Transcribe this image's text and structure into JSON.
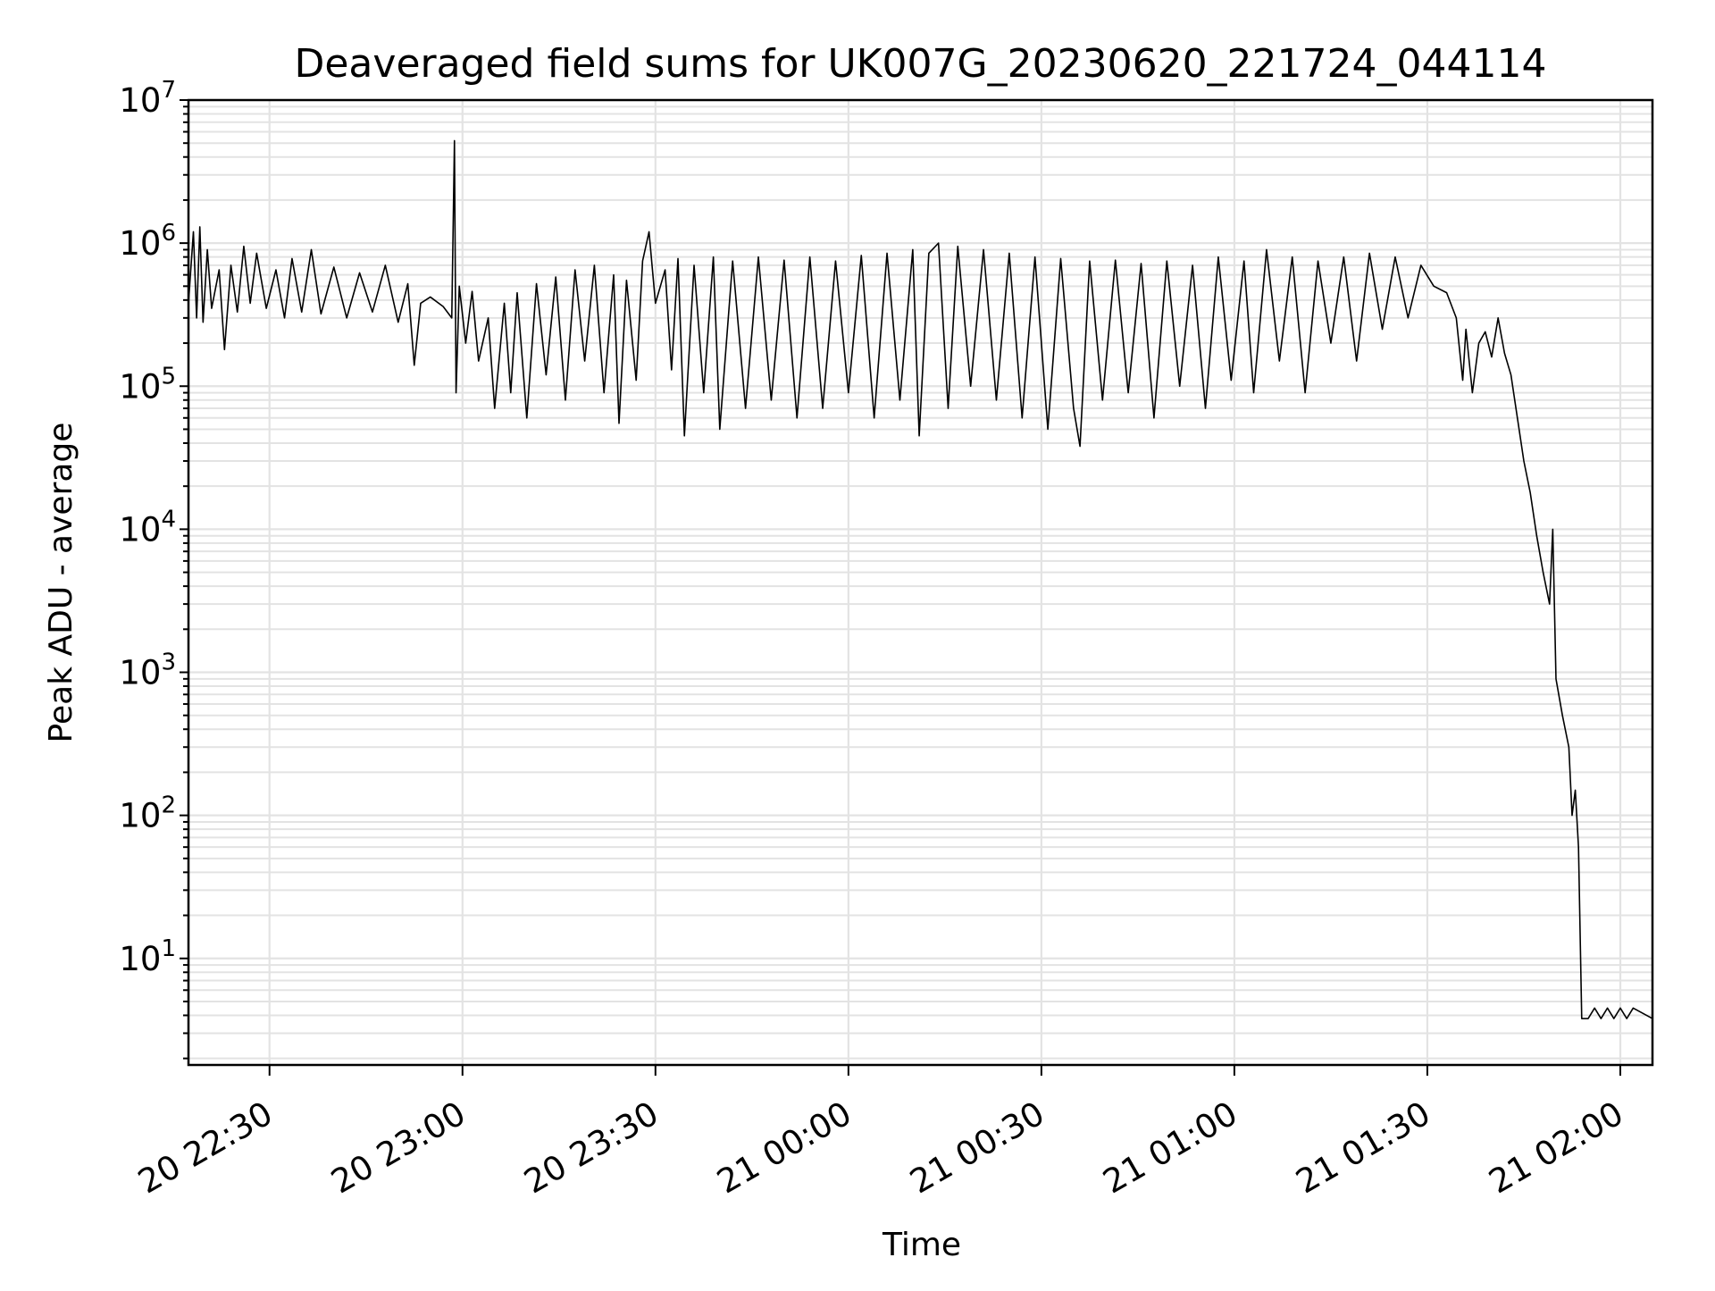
{
  "chart_data": {
    "type": "line",
    "title": "Deaveraged field sums for UK007G_20230620_221724_044114",
    "xlabel": "Time",
    "ylabel": "Peak ADU - average",
    "yscale": "log",
    "ylim": [
      1.8,
      10000000
    ],
    "xlim": [
      "2023-06-20 22:17:24",
      "2023-06-21 02:05:00"
    ],
    "grid": true,
    "x_ticks": [
      {
        "t": "2023-06-20 22:30",
        "label": "20 22:30"
      },
      {
        "t": "2023-06-20 23:00",
        "label": "20 23:00"
      },
      {
        "t": "2023-06-20 23:30",
        "label": "20 23:30"
      },
      {
        "t": "2023-06-21 00:00",
        "label": "21 00:00"
      },
      {
        "t": "2023-06-21 00:30",
        "label": "21 00:30"
      },
      {
        "t": "2023-06-21 01:00",
        "label": "21 01:00"
      },
      {
        "t": "2023-06-21 01:30",
        "label": "21 01:30"
      },
      {
        "t": "2023-06-21 02:00",
        "label": "21 02:00"
      }
    ],
    "y_ticks": [
      {
        "value": 10,
        "base": "10",
        "exp": "1"
      },
      {
        "value": 100,
        "base": "10",
        "exp": "2"
      },
      {
        "value": 1000,
        "base": "10",
        "exp": "3"
      },
      {
        "value": 10000,
        "base": "10",
        "exp": "4"
      },
      {
        "value": 100000,
        "base": "10",
        "exp": "5"
      },
      {
        "value": 1000000,
        "base": "10",
        "exp": "6"
      },
      {
        "value": 10000000,
        "base": "10",
        "exp": "7"
      }
    ],
    "colors": {
      "line": "#000000",
      "grid": "#e3e3e3",
      "axes": "#000000"
    },
    "series": [
      {
        "values": [
          [
            "2023-06-20 22:17:24",
            380000
          ],
          [
            "2023-06-20 22:18:10",
            1200000
          ],
          [
            "2023-06-20 22:18:40",
            300000
          ],
          [
            "2023-06-20 22:19:10",
            1300000
          ],
          [
            "2023-06-20 22:19:40",
            280000
          ],
          [
            "2023-06-20 22:20:20",
            900000
          ],
          [
            "2023-06-20 22:21:00",
            350000
          ],
          [
            "2023-06-20 22:22:10",
            650000
          ],
          [
            "2023-06-20 22:23:00",
            180000
          ],
          [
            "2023-06-20 22:24:00",
            700000
          ],
          [
            "2023-06-20 22:25:00",
            330000
          ],
          [
            "2023-06-20 22:26:00",
            950000
          ],
          [
            "2023-06-20 22:27:00",
            380000
          ],
          [
            "2023-06-20 22:28:00",
            850000
          ],
          [
            "2023-06-20 22:29:30",
            350000
          ],
          [
            "2023-06-20 22:31:00",
            650000
          ],
          [
            "2023-06-20 22:32:20",
            300000
          ],
          [
            "2023-06-20 22:33:30",
            780000
          ],
          [
            "2023-06-20 22:35:00",
            330000
          ],
          [
            "2023-06-20 22:36:30",
            900000
          ],
          [
            "2023-06-20 22:38:00",
            320000
          ],
          [
            "2023-06-20 22:40:00",
            680000
          ],
          [
            "2023-06-20 22:42:00",
            300000
          ],
          [
            "2023-06-20 22:44:00",
            620000
          ],
          [
            "2023-06-20 22:46:00",
            330000
          ],
          [
            "2023-06-20 22:48:00",
            700000
          ],
          [
            "2023-06-20 22:50:00",
            280000
          ],
          [
            "2023-06-20 22:51:30",
            520000
          ],
          [
            "2023-06-20 22:52:30",
            140000
          ],
          [
            "2023-06-20 22:53:30",
            380000
          ],
          [
            "2023-06-20 22:55:00",
            420000
          ],
          [
            "2023-06-20 22:57:00",
            360000
          ],
          [
            "2023-06-20 22:58:20",
            300000
          ],
          [
            "2023-06-20 22:58:45",
            5200000
          ],
          [
            "2023-06-20 22:59:00",
            90000
          ],
          [
            "2023-06-20 22:59:30",
            500000
          ],
          [
            "2023-06-20 23:00:30",
            200000
          ],
          [
            "2023-06-20 23:01:30",
            460000
          ],
          [
            "2023-06-20 23:02:30",
            150000
          ],
          [
            "2023-06-20 23:04:00",
            300000
          ],
          [
            "2023-06-20 23:05:00",
            70000
          ],
          [
            "2023-06-20 23:06:30",
            380000
          ],
          [
            "2023-06-20 23:07:30",
            90000
          ],
          [
            "2023-06-20 23:08:30",
            450000
          ],
          [
            "2023-06-20 23:10:00",
            60000
          ],
          [
            "2023-06-20 23:11:30",
            520000
          ],
          [
            "2023-06-20 23:13:00",
            120000
          ],
          [
            "2023-06-20 23:14:30",
            580000
          ],
          [
            "2023-06-20 23:16:00",
            80000
          ],
          [
            "2023-06-20 23:17:30",
            650000
          ],
          [
            "2023-06-20 23:19:00",
            150000
          ],
          [
            "2023-06-20 23:20:30",
            700000
          ],
          [
            "2023-06-20 23:22:00",
            90000
          ],
          [
            "2023-06-20 23:23:30",
            600000
          ],
          [
            "2023-06-20 23:24:20",
            55000
          ],
          [
            "2023-06-20 23:25:30",
            550000
          ],
          [
            "2023-06-20 23:27:00",
            110000
          ],
          [
            "2023-06-20 23:28:00",
            750000
          ],
          [
            "2023-06-20 23:29:00",
            1200000
          ],
          [
            "2023-06-20 23:30:00",
            380000
          ],
          [
            "2023-06-20 23:31:30",
            650000
          ],
          [
            "2023-06-20 23:32:30",
            130000
          ],
          [
            "2023-06-20 23:33:30",
            780000
          ],
          [
            "2023-06-20 23:34:30",
            45000
          ],
          [
            "2023-06-20 23:36:00",
            700000
          ],
          [
            "2023-06-20 23:37:30",
            90000
          ],
          [
            "2023-06-20 23:39:00",
            800000
          ],
          [
            "2023-06-20 23:40:00",
            50000
          ],
          [
            "2023-06-20 23:42:00",
            750000
          ],
          [
            "2023-06-20 23:44:00",
            70000
          ],
          [
            "2023-06-20 23:46:00",
            800000
          ],
          [
            "2023-06-20 23:48:00",
            80000
          ],
          [
            "2023-06-20 23:50:00",
            760000
          ],
          [
            "2023-06-20 23:52:00",
            60000
          ],
          [
            "2023-06-20 23:54:00",
            800000
          ],
          [
            "2023-06-20 23:56:00",
            70000
          ],
          [
            "2023-06-20 23:58:00",
            750000
          ],
          [
            "2023-06-21 00:00:00",
            90000
          ],
          [
            "2023-06-21 00:02:00",
            820000
          ],
          [
            "2023-06-21 00:04:00",
            60000
          ],
          [
            "2023-06-21 00:06:00",
            850000
          ],
          [
            "2023-06-21 00:08:00",
            80000
          ],
          [
            "2023-06-21 00:10:00",
            900000
          ],
          [
            "2023-06-21 00:11:00",
            45000
          ],
          [
            "2023-06-21 00:12:30",
            850000
          ],
          [
            "2023-06-21 00:14:00",
            1000000
          ],
          [
            "2023-06-21 00:15:30",
            70000
          ],
          [
            "2023-06-21 00:17:00",
            950000
          ],
          [
            "2023-06-21 00:19:00",
            100000
          ],
          [
            "2023-06-21 00:21:00",
            900000
          ],
          [
            "2023-06-21 00:23:00",
            80000
          ],
          [
            "2023-06-21 00:25:00",
            850000
          ],
          [
            "2023-06-21 00:27:00",
            60000
          ],
          [
            "2023-06-21 00:29:00",
            800000
          ],
          [
            "2023-06-21 00:31:00",
            50000
          ],
          [
            "2023-06-21 00:33:00",
            780000
          ],
          [
            "2023-06-21 00:35:00",
            70000
          ],
          [
            "2023-06-21 00:36:00",
            38000
          ],
          [
            "2023-06-21 00:37:30",
            750000
          ],
          [
            "2023-06-21 00:39:30",
            80000
          ],
          [
            "2023-06-21 00:41:30",
            760000
          ],
          [
            "2023-06-21 00:43:30",
            90000
          ],
          [
            "2023-06-21 00:45:30",
            720000
          ],
          [
            "2023-06-21 00:47:30",
            60000
          ],
          [
            "2023-06-21 00:49:30",
            750000
          ],
          [
            "2023-06-21 00:51:30",
            100000
          ],
          [
            "2023-06-21 00:53:30",
            700000
          ],
          [
            "2023-06-21 00:55:30",
            70000
          ],
          [
            "2023-06-21 00:57:30",
            800000
          ],
          [
            "2023-06-21 00:59:30",
            110000
          ],
          [
            "2023-06-21 01:01:30",
            750000
          ],
          [
            "2023-06-21 01:03:00",
            90000
          ],
          [
            "2023-06-21 01:05:00",
            900000
          ],
          [
            "2023-06-21 01:07:00",
            150000
          ],
          [
            "2023-06-21 01:09:00",
            800000
          ],
          [
            "2023-06-21 01:11:00",
            90000
          ],
          [
            "2023-06-21 01:13:00",
            750000
          ],
          [
            "2023-06-21 01:15:00",
            200000
          ],
          [
            "2023-06-21 01:17:00",
            800000
          ],
          [
            "2023-06-21 01:19:00",
            150000
          ],
          [
            "2023-06-21 01:21:00",
            850000
          ],
          [
            "2023-06-21 01:23:00",
            250000
          ],
          [
            "2023-06-21 01:25:00",
            800000
          ],
          [
            "2023-06-21 01:27:00",
            300000
          ],
          [
            "2023-06-21 01:29:00",
            700000
          ],
          [
            "2023-06-21 01:31:00",
            500000
          ],
          [
            "2023-06-21 01:33:00",
            450000
          ],
          [
            "2023-06-21 01:34:30",
            300000
          ],
          [
            "2023-06-21 01:35:30",
            110000
          ],
          [
            "2023-06-21 01:36:00",
            250000
          ],
          [
            "2023-06-21 01:37:00",
            90000
          ],
          [
            "2023-06-21 01:38:00",
            200000
          ],
          [
            "2023-06-21 01:39:00",
            240000
          ],
          [
            "2023-06-21 01:40:00",
            160000
          ],
          [
            "2023-06-21 01:41:00",
            300000
          ],
          [
            "2023-06-21 01:42:00",
            170000
          ],
          [
            "2023-06-21 01:43:00",
            120000
          ],
          [
            "2023-06-21 01:44:00",
            60000
          ],
          [
            "2023-06-21 01:45:00",
            30000
          ],
          [
            "2023-06-21 01:46:00",
            18000
          ],
          [
            "2023-06-21 01:47:00",
            9000
          ],
          [
            "2023-06-21 01:48:00",
            5000
          ],
          [
            "2023-06-21 01:49:00",
            3000
          ],
          [
            "2023-06-21 01:49:30",
            10000
          ],
          [
            "2023-06-21 01:50:00",
            900
          ],
          [
            "2023-06-21 01:51:00",
            500
          ],
          [
            "2023-06-21 01:52:00",
            300
          ],
          [
            "2023-06-21 01:52:30",
            100
          ],
          [
            "2023-06-21 01:53:00",
            150
          ],
          [
            "2023-06-21 01:53:30",
            60
          ],
          [
            "2023-06-21 01:54:00",
            3.8
          ],
          [
            "2023-06-21 01:55:00",
            3.8
          ],
          [
            "2023-06-21 01:56:00",
            4.5
          ],
          [
            "2023-06-21 01:57:00",
            3.8
          ],
          [
            "2023-06-21 01:58:00",
            4.5
          ],
          [
            "2023-06-21 01:59:00",
            3.8
          ],
          [
            "2023-06-21 02:00:00",
            4.5
          ],
          [
            "2023-06-21 02:01:00",
            3.8
          ],
          [
            "2023-06-21 02:02:00",
            4.5
          ],
          [
            "2023-06-21 02:05:00",
            3.8
          ]
        ]
      }
    ]
  }
}
